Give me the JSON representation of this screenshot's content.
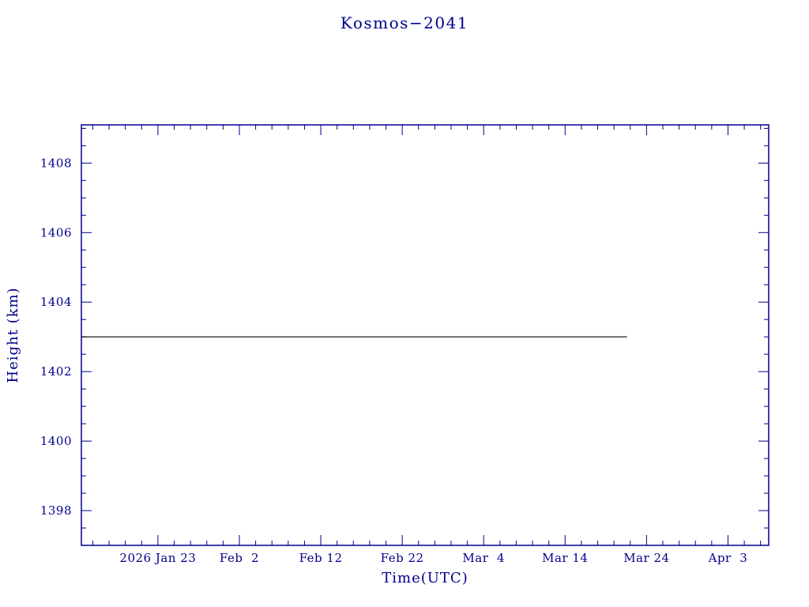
{
  "page": {
    "background": "#ffffff"
  },
  "chart_data": {
    "type": "line",
    "title": "Kosmos−2041",
    "xlabel": "Time(UTC)",
    "ylabel": "Height (km)",
    "axis_color": "#00008B",
    "x_unit": "day of year 2026",
    "x_range": [
      13.6,
      98.0
    ],
    "y_range": [
      1397.0,
      1409.1
    ],
    "x_major_ticks": [
      {
        "day": 23,
        "label": "2026 Jan 23"
      },
      {
        "day": 33,
        "label": "Feb  2"
      },
      {
        "day": 43,
        "label": "Feb 12"
      },
      {
        "day": 53,
        "label": "Feb 22"
      },
      {
        "day": 63,
        "label": "Mar  4"
      },
      {
        "day": 73,
        "label": "Mar 14"
      },
      {
        "day": 83,
        "label": "Mar 24"
      },
      {
        "day": 93,
        "label": "Apr  3"
      }
    ],
    "x_minor_step_days": 2,
    "y_major_ticks": [
      1398,
      1400,
      1402,
      1404,
      1406,
      1408
    ],
    "y_minor_step": 0.5,
    "series": [
      {
        "name": "height",
        "color": "#000000",
        "points": [
          {
            "day": 13.6,
            "height_km": 1403.0
          },
          {
            "day": 80.6,
            "height_km": 1403.0
          }
        ]
      }
    ]
  }
}
